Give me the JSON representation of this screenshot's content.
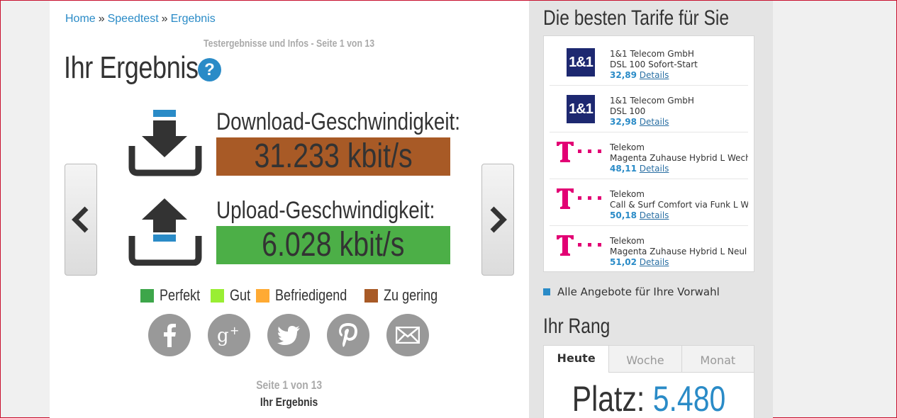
{
  "breadcrumb": {
    "items": [
      "Home",
      "Speedtest",
      "Ergebnis"
    ],
    "separator": "»"
  },
  "subtitle": "Testergebnisse und Infos - Seite 1 von 13",
  "page_title": "Ihr Ergebnis",
  "help_icon": "?",
  "download": {
    "label": "Download-Geschwindigkeit:",
    "value": "31.233 kbit/s",
    "color": "#a85a26"
  },
  "upload": {
    "label": "Upload-Geschwindigkeit:",
    "value": "6.028 kbit/s",
    "color": "#4caf47"
  },
  "legend": [
    {
      "label": "Perfekt",
      "color": "#3da64a"
    },
    {
      "label": "Gut",
      "color": "#99ee33"
    },
    {
      "label": "Befriedigend",
      "color": "#ffaa33"
    },
    {
      "label": "Zu gering",
      "color": "#a85a26"
    }
  ],
  "social": [
    "facebook-icon",
    "google-plus-icon",
    "twitter-icon",
    "pinterest-icon",
    "mail-icon"
  ],
  "pager": {
    "page": "Seite 1 von 13",
    "title": "Ihr Ergebnis"
  },
  "sidebar": {
    "tariffs_heading": "Die besten Tarife für Sie",
    "tariffs": [
      {
        "provider": "1&1 Telecom GmbH",
        "plan": "DSL 100 Sofort-Start",
        "price": "32,89",
        "details": "Details",
        "logo": "1&1"
      },
      {
        "provider": "1&1 Telecom GmbH",
        "plan": "DSL 100",
        "price": "32,98",
        "details": "Details",
        "logo": "1&1"
      },
      {
        "provider": "Telekom",
        "plan": "Magenta Zuhause Hybrid L Wech",
        "price": "48,11",
        "details": "Details",
        "logo": "T"
      },
      {
        "provider": "Telekom",
        "plan": "Call & Surf Comfort via Funk L W",
        "price": "50,18",
        "details": "Details",
        "logo": "T"
      },
      {
        "provider": "Telekom",
        "plan": "Magenta Zuhause Hybrid L Neul",
        "price": "51,02",
        "details": "Details",
        "logo": "T"
      }
    ],
    "offers_link": "Alle Angebote für Ihre Vorwahl",
    "rank_heading": "Ihr Rang",
    "tabs": [
      "Heute",
      "Woche",
      "Monat"
    ],
    "rank_label": "Platz:",
    "rank_value": "5.480"
  },
  "colors": {
    "accent": "#2a8bc7",
    "telekom": "#e20074",
    "brand_1und1": "#1d2870"
  }
}
